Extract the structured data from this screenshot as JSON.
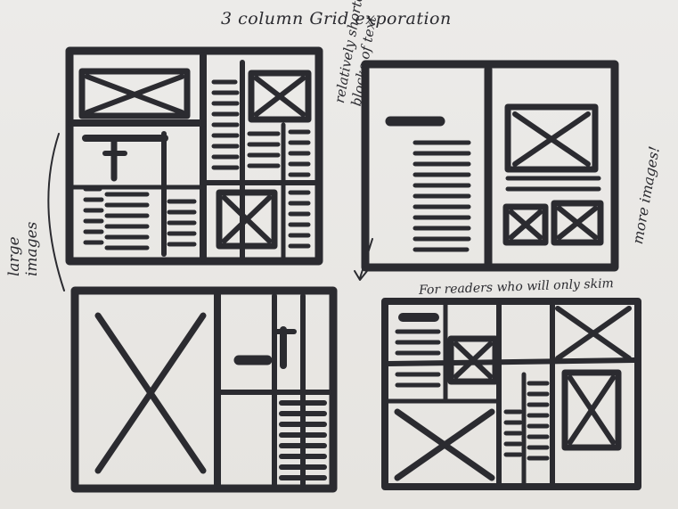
{
  "title": "3 column Grid exporation",
  "annotations": {
    "shorter_text": [
      "relatively shorter",
      "blocks of text"
    ],
    "large_images": [
      "large",
      "images"
    ],
    "more_images": "more images!",
    "skim": "For readers who will only skim"
  },
  "colors": {
    "ink": "#2b2b30",
    "paper": "#e9e7e4"
  }
}
